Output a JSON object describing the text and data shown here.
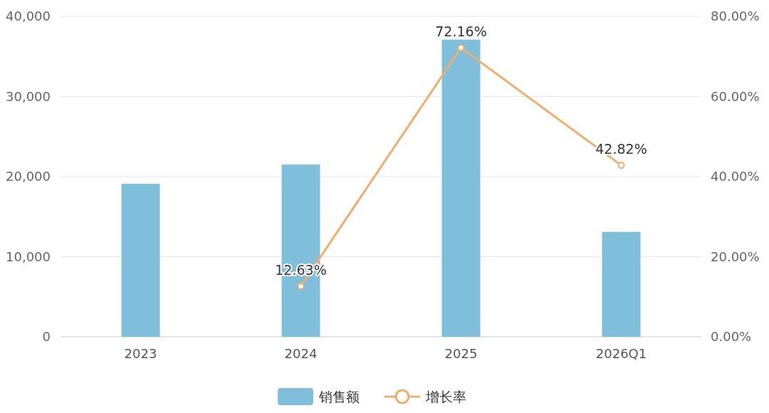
{
  "chart_data": {
    "type": "bar",
    "categories": [
      "2023",
      "2024",
      "2025",
      "2026Q1"
    ],
    "series": [
      {
        "name": "销售额",
        "color": "#7fbfdb",
        "values": [
          19100,
          21500,
          37100,
          13100
        ]
      },
      {
        "name": "增长率",
        "type": "line",
        "axis": "y2",
        "color": "#f0ad6e",
        "marker": "circle",
        "values": [
          null,
          12.63,
          72.16,
          42.82
        ],
        "value_labels": [
          null,
          "12.63%",
          "72.16%",
          "42.82%"
        ]
      }
    ],
    "ylim": [
      0,
      40000
    ],
    "yticks": [
      {
        "value": 0,
        "label": "0"
      },
      {
        "value": 10000,
        "label": "10,000"
      },
      {
        "value": 20000,
        "label": "20,000"
      },
      {
        "value": 30000,
        "label": "30,000"
      },
      {
        "value": 40000,
        "label": "40,000"
      }
    ],
    "y2lim": [
      0,
      80
    ],
    "y2ticks": [
      {
        "value": 0,
        "label": "0.00%"
      },
      {
        "value": 20,
        "label": "20.00%"
      },
      {
        "value": 40,
        "label": "40.00%"
      },
      {
        "value": 60,
        "label": "60.00%"
      },
      {
        "value": 80,
        "label": "80.00%"
      }
    ],
    "grid": "y",
    "legend": "bottom"
  }
}
